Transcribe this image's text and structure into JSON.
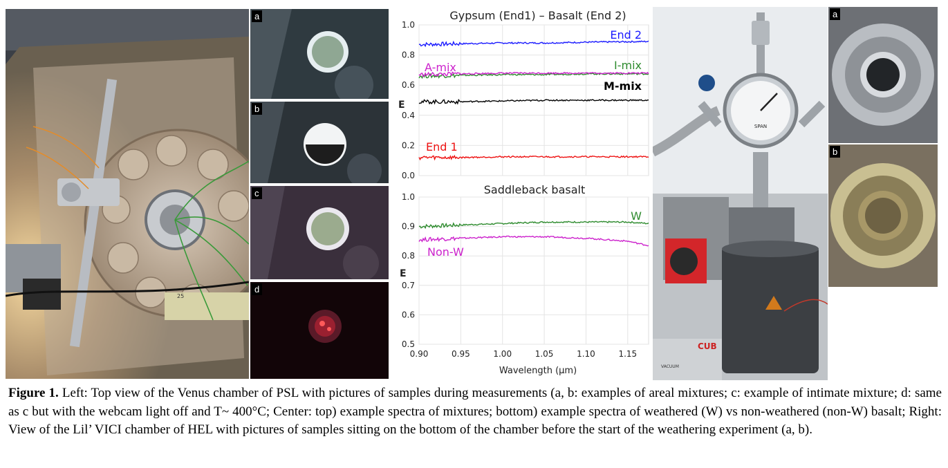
{
  "left_photos": {
    "labels": [
      "a",
      "b",
      "c",
      "d"
    ],
    "panel_text": "25"
  },
  "right_photos": {
    "labels": [
      "a",
      "b"
    ],
    "gauge_text": "SPAN",
    "brand_text": "CUB",
    "vacuum_text": "VACUUM"
  },
  "chart_data": [
    {
      "type": "line",
      "title": "Gypsum (End1) – Basalt (End 2)",
      "ylabel": "E",
      "xlabel": "",
      "xlim": [
        0.9,
        1.175
      ],
      "ylim": [
        0.0,
        1.0
      ],
      "yticks": [
        "0.0",
        "0.2",
        "0.4",
        "0.6",
        "0.8",
        "1.0"
      ],
      "grid": true,
      "series": [
        {
          "name": "End 2",
          "color": "#1a1aff",
          "x": [
            0.9,
            0.95,
            1.0,
            1.05,
            1.1,
            1.175
          ],
          "values": [
            0.87,
            0.875,
            0.88,
            0.88,
            0.885,
            0.89
          ]
        },
        {
          "name": "I-mix",
          "color": "#2e8b2e",
          "x": [
            0.9,
            0.95,
            1.0,
            1.05,
            1.1,
            1.175
          ],
          "values": [
            0.66,
            0.665,
            0.67,
            0.67,
            0.675,
            0.675
          ]
        },
        {
          "name": "A-mix",
          "color": "#cc22cc",
          "x": [
            0.9,
            0.95,
            1.0,
            1.05,
            1.1,
            1.175
          ],
          "values": [
            0.67,
            0.675,
            0.68,
            0.68,
            0.68,
            0.68
          ]
        },
        {
          "name": "M-mix",
          "color": "#000000",
          "x": [
            0.9,
            0.95,
            1.0,
            1.05,
            1.1,
            1.175
          ],
          "values": [
            0.49,
            0.49,
            0.495,
            0.5,
            0.5,
            0.5
          ]
        },
        {
          "name": "End 1",
          "color": "#ee1111",
          "x": [
            0.9,
            0.95,
            1.0,
            1.05,
            1.1,
            1.175
          ],
          "values": [
            0.12,
            0.12,
            0.125,
            0.125,
            0.125,
            0.125
          ]
        }
      ]
    },
    {
      "type": "line",
      "title": "Saddleback basalt",
      "ylabel": "E",
      "xlabel": "Wavelength (μm)",
      "xlim": [
        0.9,
        1.175
      ],
      "ylim": [
        0.5,
        1.0
      ],
      "xticks": [
        "0.90",
        "0.95",
        "1.00",
        "1.05",
        "1.10",
        "1.15"
      ],
      "yticks": [
        "0.5",
        "0.6",
        "0.7",
        "0.8",
        "0.9",
        "1.0"
      ],
      "grid": true,
      "series": [
        {
          "name": "W",
          "color": "#2e8b2e",
          "x": [
            0.9,
            0.95,
            1.0,
            1.05,
            1.1,
            1.15,
            1.175
          ],
          "values": [
            0.9,
            0.905,
            0.91,
            0.915,
            0.915,
            0.915,
            0.91
          ]
        },
        {
          "name": "Non-W",
          "color": "#cc22cc",
          "x": [
            0.9,
            0.95,
            1.0,
            1.05,
            1.1,
            1.15,
            1.175
          ],
          "values": [
            0.855,
            0.86,
            0.865,
            0.865,
            0.86,
            0.85,
            0.835
          ]
        }
      ]
    }
  ],
  "caption": {
    "bold": "Figure 1.",
    "text": " Left: Top view of the Venus chamber of PSL with pictures of samples during measurements (a, b: examples of areal mixtures; c: example of intimate mixture; d: same as c but with the webcam light off  and T~ 400°C; Center: top) example spectra of mixtures; bottom) example spectra of weathered (W) vs non-weathered (non-W) basalt; Right: View of the Lil’ VICI chamber of HEL with pictures of samples sitting on the bottom of the chamber before the start of the weathering experiment (a, b)."
  }
}
